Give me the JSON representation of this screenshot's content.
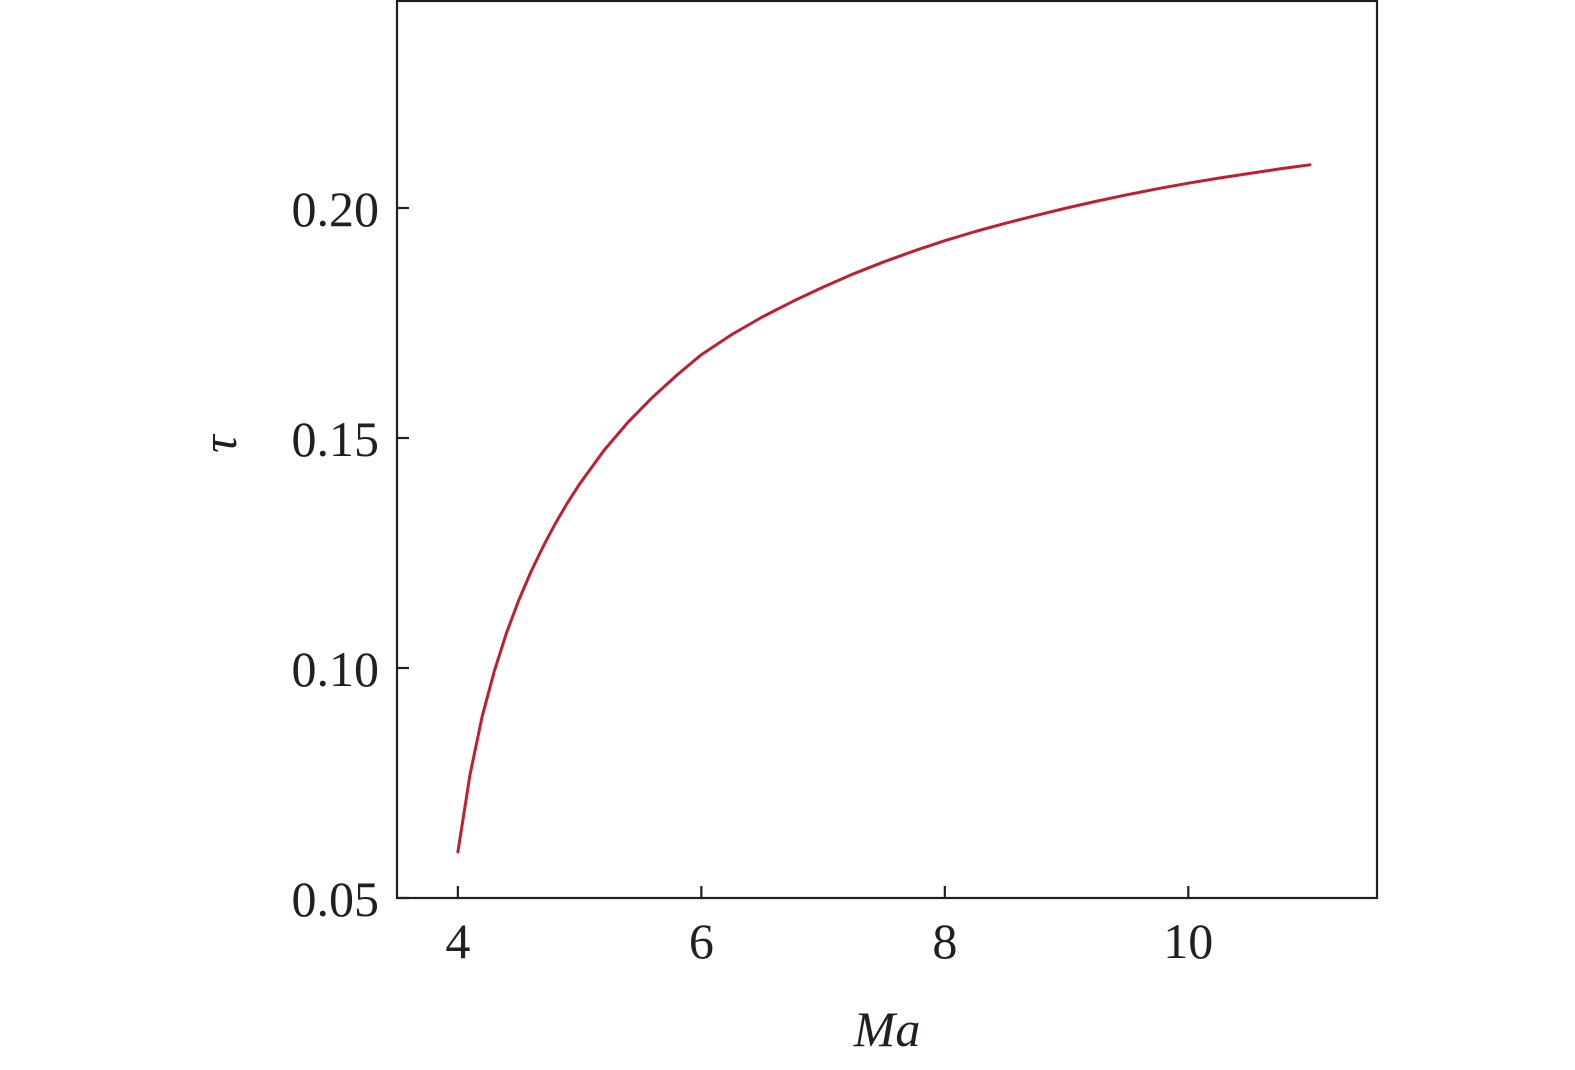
{
  "chart_data": {
    "type": "line",
    "title": "",
    "xlabel": "Ma",
    "ylabel": "τ",
    "xlim": [
      3.5,
      11.55
    ],
    "ylim": [
      0.05,
      0.245
    ],
    "xticks": [
      4,
      6,
      8,
      10
    ],
    "xtick_labels": [
      "4",
      "6",
      "8",
      "10"
    ],
    "yticks": [
      0.05,
      0.1,
      0.15,
      0.2
    ],
    "ytick_labels": [
      "0.05",
      "0.10",
      "0.15",
      "0.20"
    ],
    "grid": false,
    "legend": "none",
    "series": [
      {
        "color": "#be2030",
        "x": [
          4.0,
          4.1,
          4.2,
          4.3,
          4.4,
          4.5,
          4.6,
          4.7,
          4.8,
          4.9,
          5.0,
          5.2,
          5.4,
          5.6,
          5.8,
          6.0,
          6.25,
          6.5,
          6.75,
          7.0,
          7.25,
          7.5,
          7.75,
          8.0,
          8.25,
          8.5,
          8.75,
          9.0,
          9.25,
          9.5,
          9.75,
          10.0,
          10.25,
          10.5,
          10.75,
          11.0
        ],
        "y": [
          0.06,
          0.0768,
          0.0895,
          0.0994,
          0.1077,
          0.1147,
          0.1209,
          0.1264,
          0.1314,
          0.1359,
          0.14,
          0.1473,
          0.1535,
          0.1589,
          0.1637,
          0.1681,
          0.1725,
          0.1763,
          0.1797,
          0.1828,
          0.1857,
          0.1883,
          0.1907,
          0.1929,
          0.1949,
          0.1967,
          0.1984,
          0.2,
          0.2015,
          0.2029,
          0.2042,
          0.2054,
          0.2065,
          0.2075,
          0.2085,
          0.2094
        ]
      }
    ]
  }
}
